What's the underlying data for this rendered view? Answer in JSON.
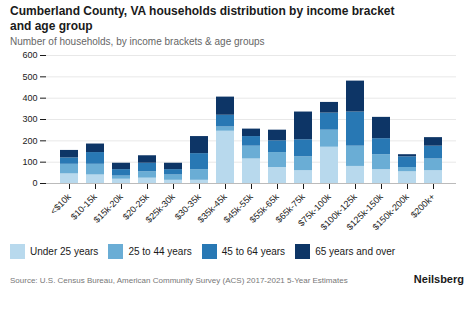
{
  "chart_data": {
    "type": "bar",
    "stacked": true,
    "title": "Cumberland County, VA households distribution by income bracket\nand age group",
    "subtitle": "Number of households, by income brackets & age groups",
    "source": "Source: U.S. Census Bureau, American Community Survey (ACS) 2017-2021 5-Year Estimates",
    "annotations": [
      "Neilsberg"
    ],
    "categories": [
      "<$10k",
      "$10-15k",
      "$15k-20k",
      "$20-25k",
      "$25k-30k",
      "$30-35k",
      "$35k-45k",
      "$45k-55k",
      "$55k-65k",
      "$65k-75k",
      "$75k-100k",
      "$100k-125k",
      "$125k-150k",
      "$150k-200k",
      "$200k+"
    ],
    "series": [
      {
        "name": "Under 25 years",
        "color": "#b8d9ed",
        "values": [
          45,
          40,
          20,
          25,
          15,
          15,
          245,
          115,
          75,
          60,
          170,
          80,
          65,
          55,
          60
        ]
      },
      {
        "name": "25 to 44 years",
        "color": "#6aadd5",
        "values": [
          45,
          50,
          15,
          30,
          25,
          50,
          20,
          60,
          70,
          65,
          80,
          95,
          70,
          20,
          55
        ]
      },
      {
        "name": "45 to 64 years",
        "color": "#2878b4",
        "values": [
          30,
          55,
          30,
          40,
          25,
          75,
          55,
          45,
          55,
          80,
          80,
          160,
          75,
          50,
          60
        ]
      },
      {
        "name": "65 years and over",
        "color": "#0d3566",
        "values": [
          35,
          40,
          30,
          35,
          30,
          80,
          85,
          35,
          50,
          130,
          50,
          145,
          100,
          10,
          40
        ]
      }
    ],
    "ylim": [
      0,
      600
    ],
    "yticks": [
      0,
      100,
      200,
      300,
      400,
      500,
      600
    ],
    "grid": true,
    "legend": "bottom"
  }
}
